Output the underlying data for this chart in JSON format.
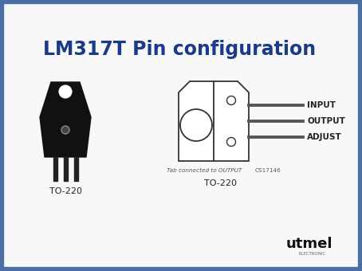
{
  "title": "LM317T Pin configuration",
  "title_color": "#1a3a8a",
  "title_fontsize": 17,
  "border_color": "#4a6fa5",
  "border_lw": 6,
  "bg_color": "#f0f0f0",
  "inner_bg": "#f8f8f8",
  "pin_labels": [
    "INPUT",
    "OUTPUT",
    "ADJUST"
  ],
  "label_left": "TO-220",
  "label_right": "TO-220",
  "tab_text": "Tab connected to OUTPUT",
  "cs_text": "CS17146",
  "logo_text": "utmel",
  "logo_sub": "ELECTRONIC"
}
